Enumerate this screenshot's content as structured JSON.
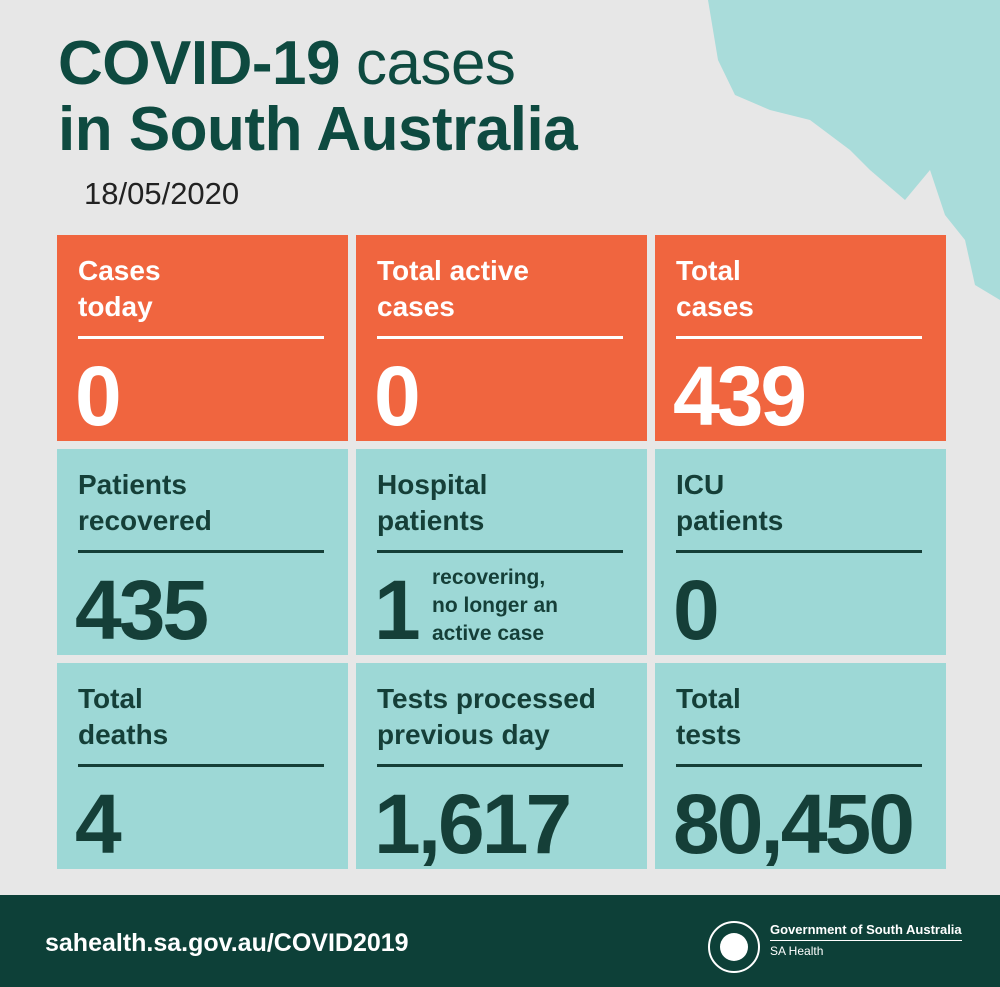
{
  "header": {
    "title_lines": [
      [
        "COVID-19",
        "cases"
      ],
      [
        "in South Australia"
      ]
    ],
    "date": "18/05/2020"
  },
  "tiles": [
    {
      "label": [
        "Cases",
        "today"
      ],
      "value": "0",
      "color": "#f0653f",
      "text_color": "#ffffff"
    },
    {
      "label": [
        "Total active",
        "cases"
      ],
      "value": "0",
      "color": "#f0653f",
      "text_color": "#ffffff"
    },
    {
      "label": [
        "Total",
        "cases"
      ],
      "value": "439",
      "color": "#f0653f",
      "text_color": "#ffffff"
    },
    {
      "label": [
        "Patients",
        "recovered"
      ],
      "value": "435",
      "color": "#9dd8d6",
      "text_color": "#153f38"
    },
    {
      "label": [
        "Hospital",
        "patients"
      ],
      "value": "1",
      "note": [
        "recovering,",
        "no longer an",
        "active case"
      ],
      "color": "#9dd8d6",
      "text_color": "#153f38"
    },
    {
      "label": [
        "ICU",
        "patients"
      ],
      "value": "0",
      "color": "#9dd8d6",
      "text_color": "#153f38"
    },
    {
      "label": [
        "Total",
        "deaths"
      ],
      "value": "4",
      "color": "#9dd8d6",
      "text_color": "#153f38"
    },
    {
      "label": [
        "Tests processed",
        "previous day"
      ],
      "value": "1,617",
      "color": "#9dd8d6",
      "text_color": "#153f38"
    },
    {
      "label": [
        "Total",
        "tests"
      ],
      "value": "80,450",
      "color": "#9dd8d6",
      "text_color": "#153f38"
    }
  ],
  "footer": {
    "url": "sahealth.sa.gov.au/COVID2019",
    "org": "Government of South Australia",
    "dept": "SA Health"
  }
}
